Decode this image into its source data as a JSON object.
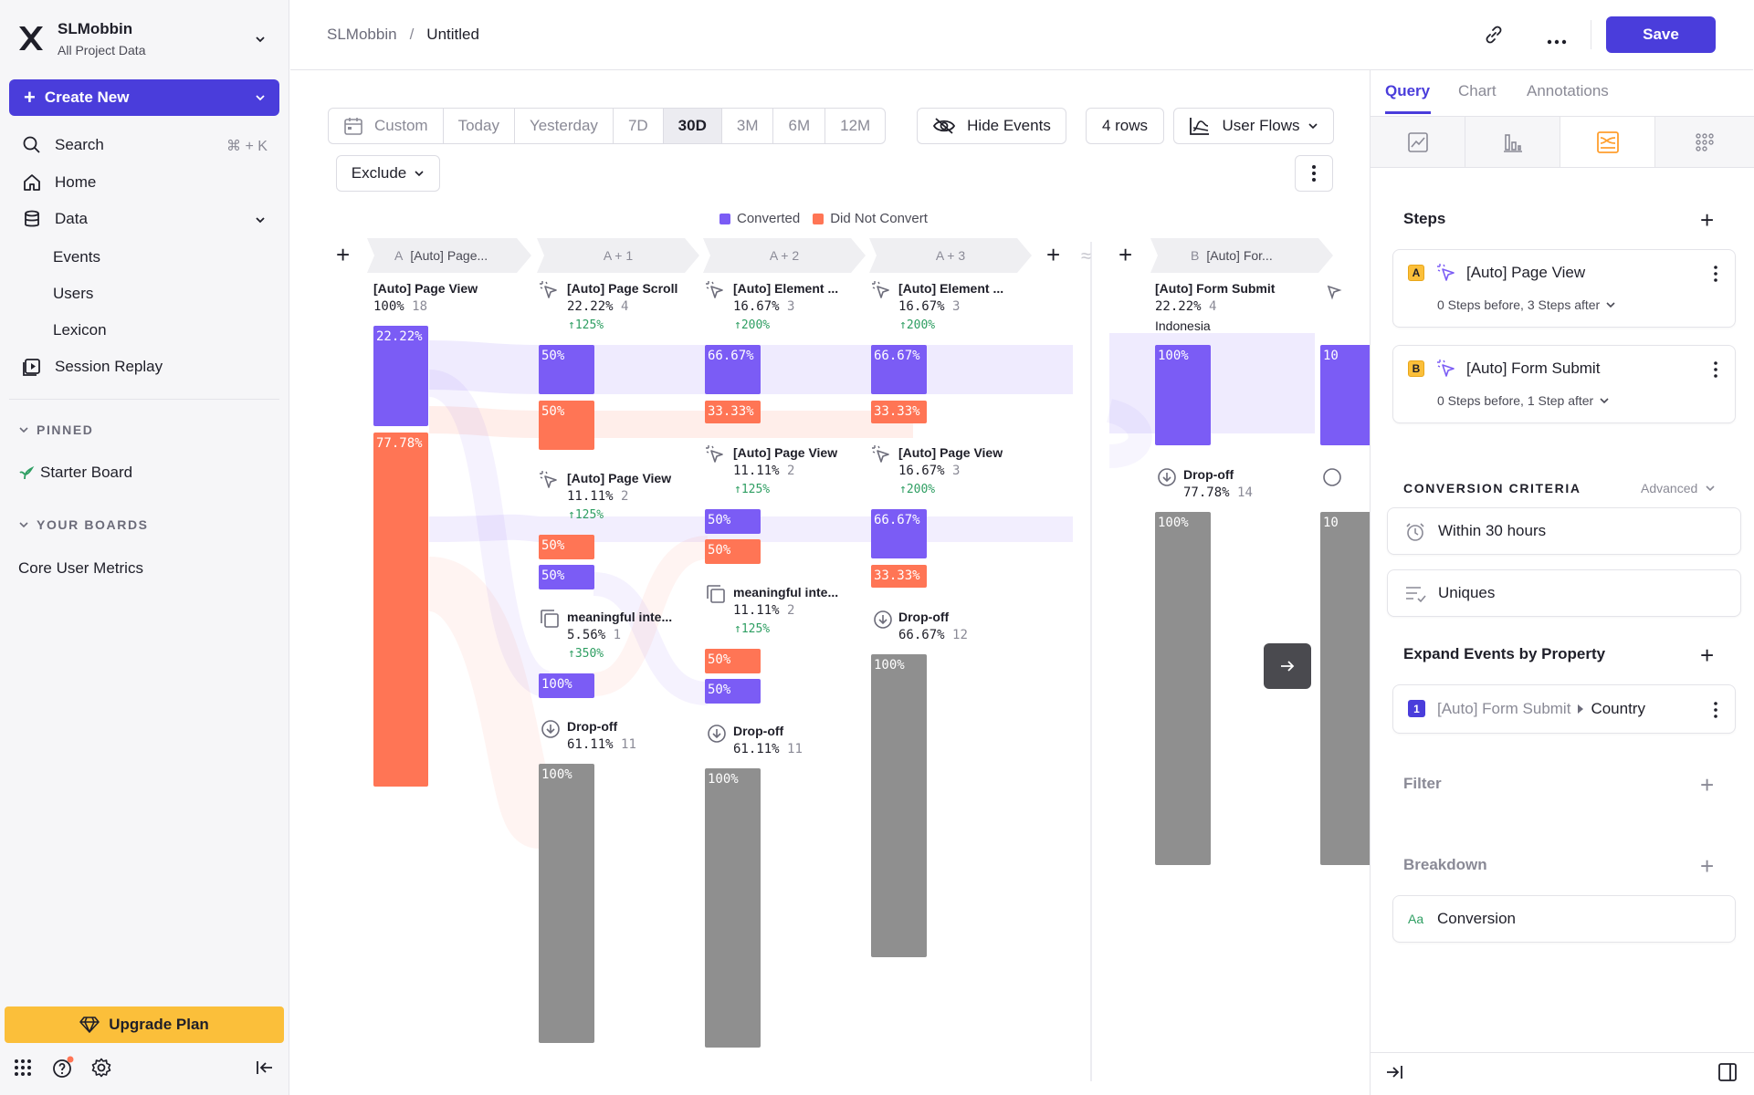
{
  "workspace": {
    "name": "SLMobbin",
    "subtitle": "All Project Data"
  },
  "sidebar": {
    "create_new": "Create New",
    "search": "Search",
    "search_shortcut": "⌘ + K",
    "home": "Home",
    "data": "Data",
    "data_items": [
      "Events",
      "Users",
      "Lexicon"
    ],
    "session_replay": "Session Replay",
    "pinned_header": "PINNED",
    "pinned_items": [
      "Starter Board"
    ],
    "boards_header": "YOUR BOARDS",
    "boards_items": [
      "Core User Metrics"
    ],
    "upgrade": "Upgrade Plan"
  },
  "header": {
    "breadcrumb_root": "SLMobbin",
    "breadcrumb_sep": "/",
    "breadcrumb_current": "Untitled",
    "save": "Save"
  },
  "toolbar": {
    "date_ranges": [
      "Custom",
      "Today",
      "Yesterday",
      "7D",
      "30D",
      "3M",
      "6M",
      "12M"
    ],
    "active_range": "30D",
    "hide_events": "Hide Events",
    "rows": "4 rows",
    "view_type": "User Flows",
    "exclude": "Exclude"
  },
  "legend": {
    "converted": "Converted",
    "not_converted": "Did Not Convert"
  },
  "colors": {
    "accent": "#4a3ddb",
    "converted": "#7b5cf5",
    "not_converted": "#ff7555",
    "dropoff": "#8f8f8f",
    "upgrade": "#fbbf3a",
    "positive": "#2e9e62"
  },
  "flow": {
    "columns": [
      {
        "prefix": "A",
        "label": "[Auto] Page..."
      },
      {
        "prefix": "",
        "label": "A + 1"
      },
      {
        "prefix": "",
        "label": "A + 2"
      },
      {
        "prefix": "",
        "label": "A + 3"
      },
      {
        "prefix": "B",
        "label": "[Auto] For..."
      }
    ],
    "col0": {
      "name": "[Auto] Page View",
      "pct": "100%",
      "count": "18",
      "bar_conv": "22.22%",
      "bar_not": "77.78%"
    },
    "col1": [
      {
        "name": "[Auto] Page Scroll",
        "pct": "22.22%",
        "count": "4",
        "delta": "↑125%",
        "bar1": "50%",
        "bar2": "50%"
      },
      {
        "name": "[Auto] Page View",
        "pct": "11.11%",
        "count": "2",
        "delta": "↑125%",
        "bar1": "50%",
        "bar2": "50%"
      },
      {
        "name": "meaningful inte...",
        "pct": "5.56%",
        "count": "1",
        "delta": "↑350%",
        "bar1": "100%"
      },
      {
        "name": "Drop-off",
        "pct": "61.11%",
        "count": "11",
        "bar1": "100%"
      }
    ],
    "col2": [
      {
        "name": "[Auto] Element ...",
        "pct": "16.67%",
        "count": "3",
        "delta": "↑200%",
        "bar1": "66.67%",
        "bar2": "33.33%"
      },
      {
        "name": "[Auto] Page View",
        "pct": "11.11%",
        "count": "2",
        "delta": "↑125%",
        "bar1": "50%",
        "bar2": "50%"
      },
      {
        "name": "meaningful inte...",
        "pct": "11.11%",
        "count": "2",
        "delta": "↑125%",
        "bar1": "50%",
        "bar2": "50%"
      },
      {
        "name": "Drop-off",
        "pct": "61.11%",
        "count": "11",
        "bar1": "100%"
      }
    ],
    "col3": [
      {
        "name": "[Auto] Element ...",
        "pct": "16.67%",
        "count": "3",
        "delta": "↑200%",
        "bar1": "66.67%",
        "bar2": "33.33%"
      },
      {
        "name": "[Auto] Page View",
        "pct": "16.67%",
        "count": "3",
        "delta": "↑200%",
        "bar1": "66.67%",
        "bar2": "33.33%"
      },
      {
        "name": "Drop-off",
        "pct": "66.67%",
        "count": "12",
        "bar1": "100%"
      }
    ],
    "colB": [
      {
        "name": "[Auto] Form Submit",
        "pct": "22.22%",
        "count": "4",
        "sub": "Indonesia",
        "bar1": "100%"
      },
      {
        "name": "Drop-off",
        "pct": "77.78%",
        "count": "14",
        "bar1": "100%"
      }
    ],
    "partial_bar_label": "10"
  },
  "rightpanel": {
    "tabs": [
      "Query",
      "Chart",
      "Annotations"
    ],
    "steps_header": "Steps",
    "steps": [
      {
        "letter": "A",
        "name": "[Auto] Page View",
        "detail": "0 Steps before, 3 Steps after"
      },
      {
        "letter": "B",
        "name": "[Auto] Form Submit",
        "detail": "0 Steps before, 1 Step after"
      }
    ],
    "conversion_header": "CONVERSION CRITERIA",
    "advanced": "Advanced",
    "within": "Within 30 hours",
    "uniques": "Uniques",
    "expand_header": "Expand Events by Property",
    "expand_item": {
      "index": "1",
      "event": "[Auto] Form Submit",
      "property": "Country"
    },
    "filter": "Filter",
    "breakdown": "Breakdown",
    "conversion": "Conversion",
    "aa": "Aa"
  }
}
